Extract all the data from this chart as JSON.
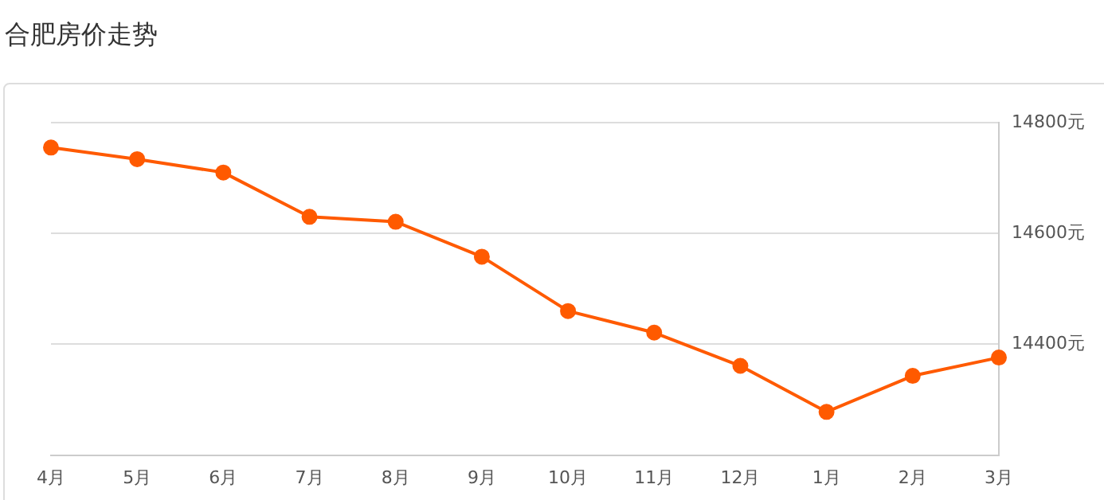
{
  "chart_data": {
    "type": "line",
    "title": "合肥房价走势",
    "categories": [
      "4月",
      "5月",
      "6月",
      "7月",
      "8月",
      "9月",
      "10月",
      "11月",
      "12月",
      "1月",
      "2月",
      "3月"
    ],
    "series": [
      {
        "color": "#ff5a00",
        "values": [
          14755,
          14734,
          14710,
          14630,
          14621,
          14558,
          14460,
          14421,
          14361,
          14278,
          14343,
          14376
        ]
      }
    ],
    "ylim": [
      14200,
      14800
    ],
    "yticks": [
      {
        "value": 14200,
        "label": null
      },
      {
        "value": 14400,
        "label": "14400元"
      },
      {
        "value": 14600,
        "label": "14600元"
      },
      {
        "value": 14800,
        "label": "14800元"
      }
    ],
    "grid": "y",
    "marker": "circle",
    "legend": false
  }
}
